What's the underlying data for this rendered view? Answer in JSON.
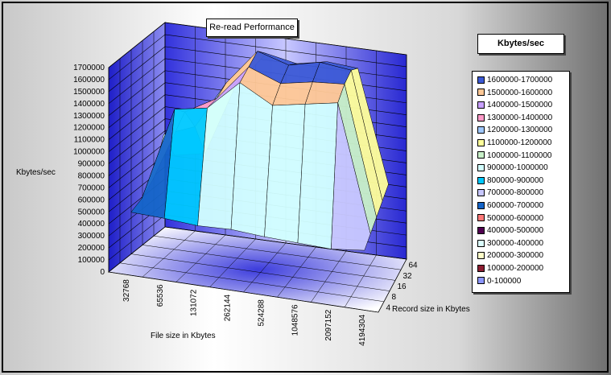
{
  "chart_data": {
    "type": "surface3d",
    "title": "Re-read Performance",
    "legend_title": "Kbytes/sec",
    "zlabel": "Kbytes/sec",
    "xlabel": "File size in Kbytes",
    "ylabel": "Record size in Kbytes",
    "z_ticks": [
      "0",
      "100000",
      "200000",
      "300000",
      "400000",
      "500000",
      "600000",
      "700000",
      "800000",
      "900000",
      "1000000",
      "1100000",
      "1200000",
      "1300000",
      "1400000",
      "1500000",
      "1600000",
      "1700000"
    ],
    "zlim": [
      0,
      1700000
    ],
    "x_categories": [
      "32768",
      "65536",
      "131072",
      "262144",
      "524288",
      "1048576",
      "2097152",
      "4194304"
    ],
    "y_categories": [
      "4",
      "8",
      "16",
      "32",
      "64"
    ],
    "values": [
      [
        480000,
        470000,
        450000,
        460000,
        440000,
        430000,
        420000,
        450000
      ],
      [
        520000,
        1300000,
        1350000,
        1600000,
        1450000,
        1500000,
        1550000,
        500000
      ],
      [
        600000,
        1200000,
        1350000,
        1650000,
        1550000,
        1600000,
        1620000,
        550000
      ],
      [
        900000,
        1000000,
        1400000,
        1700000,
        1620000,
        1680000,
        1650000,
        600000
      ],
      [
        650000,
        700000,
        1300000,
        1600000,
        1550000,
        1600000,
        1580000,
        650000
      ]
    ],
    "legend": [
      {
        "label": "1600000-1700000",
        "color": "#3c5ad6"
      },
      {
        "label": "1500000-1600000",
        "color": "#ffc896"
      },
      {
        "label": "1400000-1500000",
        "color": "#c8a0ff"
      },
      {
        "label": "1300000-1400000",
        "color": "#ff9ac8"
      },
      {
        "label": "1200000-1300000",
        "color": "#a0c8ff"
      },
      {
        "label": "1100000-1200000",
        "color": "#ffff9a"
      },
      {
        "label": "1000000-1100000",
        "color": "#c8f0c8"
      },
      {
        "label": "900000-1000000",
        "color": "#d2ffff"
      },
      {
        "label": "800000-900000",
        "color": "#00c8ff"
      },
      {
        "label": "700000-800000",
        "color": "#c8c8ff"
      },
      {
        "label": "600000-700000",
        "color": "#1464c8"
      },
      {
        "label": "500000-600000",
        "color": "#ff7878"
      },
      {
        "label": "400000-500000",
        "color": "#500050"
      },
      {
        "label": "300000-400000",
        "color": "#dcffff"
      },
      {
        "label": "200000-300000",
        "color": "#ffffc8"
      },
      {
        "label": "100000-200000",
        "color": "#8c1e32"
      },
      {
        "label": "0-100000",
        "color": "#8c96ff"
      }
    ]
  }
}
